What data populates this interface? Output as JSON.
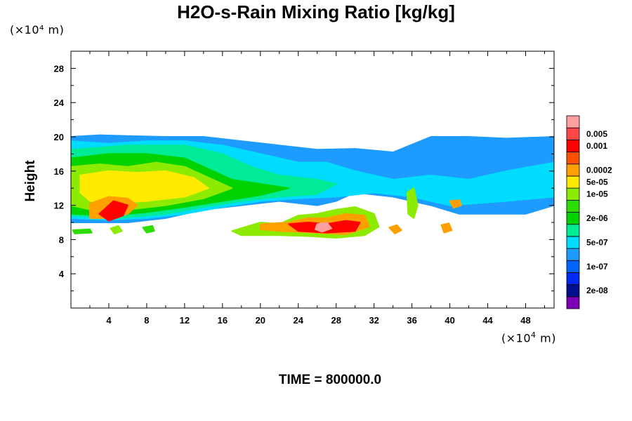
{
  "chart_data": {
    "type": "heatmap",
    "title": "H2O-s-Rain Mixing Ratio [kg/kg]",
    "xlabel": "",
    "ylabel": "Height",
    "x_unit": "(×10⁴ m)",
    "y_unit": "(×10⁴ m)",
    "x_unit_base": "(×10",
    "x_unit_exp": "4",
    "x_unit_tail": " m)",
    "xlim": [
      0,
      51
    ],
    "ylim": [
      0,
      30
    ],
    "x_ticks": [
      4,
      8,
      12,
      16,
      20,
      24,
      28,
      32,
      36,
      40,
      44,
      48
    ],
    "y_ticks": [
      4,
      8,
      12,
      16,
      20,
      24,
      28
    ],
    "footer": "TIME = 800000.0",
    "colorbar": {
      "colors": [
        "#7b00b4",
        "#000f8c",
        "#0028f0",
        "#0064ff",
        "#1e9bff",
        "#00dcff",
        "#00eb96",
        "#00d200",
        "#2ddc00",
        "#8ceb00",
        "#ffeb00",
        "#ffa000",
        "#ff5000",
        "#ff0000",
        "#ff4646",
        "#ffa0a0"
      ],
      "labels": [
        {
          "index": 1,
          "text": "2e-08"
        },
        {
          "index": 3,
          "text": "1e-07"
        },
        {
          "index": 5,
          "text": "5e-07"
        },
        {
          "index": 7,
          "text": "2e-06"
        },
        {
          "index": 9,
          "text": "1e-05"
        },
        {
          "index": 10,
          "text": "5e-05"
        },
        {
          "index": 11,
          "text": "0.0002"
        },
        {
          "index": 13,
          "text": "0.001"
        },
        {
          "index": 14,
          "text": "0.005"
        }
      ]
    },
    "regions": [
      {
        "name": "upper-cloud-band",
        "level": 4,
        "points": [
          [
            0,
            20
          ],
          [
            3,
            20.2
          ],
          [
            6,
            20.1
          ],
          [
            10,
            20
          ],
          [
            14,
            20
          ],
          [
            18,
            19.5
          ],
          [
            22,
            19
          ],
          [
            26,
            18.5
          ],
          [
            30,
            18.6
          ],
          [
            34,
            18.2
          ],
          [
            38,
            20
          ],
          [
            42,
            20
          ],
          [
            46,
            19.8
          ],
          [
            51,
            20
          ],
          [
            51,
            12
          ],
          [
            48,
            11
          ],
          [
            45,
            11
          ],
          [
            41,
            11
          ],
          [
            38,
            12
          ],
          [
            34,
            13
          ],
          [
            30,
            13.5
          ],
          [
            28,
            12.5
          ],
          [
            26,
            12
          ],
          [
            22,
            12.5
          ],
          [
            18,
            12
          ],
          [
            14,
            11.5
          ],
          [
            10,
            10.5
          ],
          [
            6,
            10
          ],
          [
            3,
            10
          ],
          [
            0,
            10
          ]
        ]
      },
      {
        "name": "mid-cloud",
        "level": 5,
        "points": [
          [
            0,
            19.5
          ],
          [
            4,
            19.2
          ],
          [
            8,
            19.5
          ],
          [
            12,
            19.5
          ],
          [
            16,
            19
          ],
          [
            20,
            18
          ],
          [
            24,
            17
          ],
          [
            27,
            17
          ],
          [
            30,
            16
          ],
          [
            34,
            15
          ],
          [
            38,
            15.5
          ],
          [
            42,
            15
          ],
          [
            46,
            16
          ],
          [
            51,
            17
          ],
          [
            51,
            13
          ],
          [
            46,
            12.5
          ],
          [
            40,
            12
          ],
          [
            36,
            13
          ],
          [
            32,
            13.5
          ],
          [
            28,
            13
          ],
          [
            24,
            12.8
          ],
          [
            20,
            12.5
          ],
          [
            16,
            11.8
          ],
          [
            12,
            11
          ],
          [
            8,
            10.5
          ],
          [
            4,
            10.3
          ],
          [
            0,
            10.5
          ]
        ]
      },
      {
        "name": "teal-layer",
        "level": 6,
        "points": [
          [
            0,
            18.5
          ],
          [
            6,
            19
          ],
          [
            12,
            19
          ],
          [
            16,
            18
          ],
          [
            19,
            16.5
          ],
          [
            22,
            15.5
          ],
          [
            26,
            15
          ],
          [
            28,
            14.5
          ],
          [
            26,
            13.3
          ],
          [
            22,
            13
          ],
          [
            18,
            12.5
          ],
          [
            14,
            11.8
          ],
          [
            10,
            11
          ],
          [
            5,
            10.5
          ],
          [
            0,
            10.8
          ]
        ]
      },
      {
        "name": "green-layer",
        "level": 7,
        "points": [
          [
            0,
            17.5
          ],
          [
            4,
            18
          ],
          [
            8,
            18
          ],
          [
            12,
            17.5
          ],
          [
            15,
            16
          ],
          [
            17,
            15
          ],
          [
            20,
            14.5
          ],
          [
            23,
            14
          ],
          [
            20,
            13.2
          ],
          [
            16,
            12.5
          ],
          [
            12,
            11.8
          ],
          [
            8,
            11.2
          ],
          [
            4,
            10.8
          ],
          [
            0,
            11
          ]
        ]
      },
      {
        "name": "yellow-green-layer",
        "level": 9,
        "points": [
          [
            0,
            16.5
          ],
          [
            3,
            16.8
          ],
          [
            6,
            16.5
          ],
          [
            9,
            17
          ],
          [
            12,
            16.5
          ],
          [
            15,
            15
          ],
          [
            17,
            14
          ],
          [
            14,
            12.8
          ],
          [
            10,
            12
          ],
          [
            6,
            11.5
          ],
          [
            2,
            11.5
          ],
          [
            0,
            12
          ]
        ]
      },
      {
        "name": "yellow-core",
        "level": 10,
        "points": [
          [
            1,
            15.5
          ],
          [
            4,
            16
          ],
          [
            7,
            15.8
          ],
          [
            10,
            16
          ],
          [
            13,
            15.2
          ],
          [
            14.5,
            14
          ],
          [
            12,
            13
          ],
          [
            8,
            12.5
          ],
          [
            5,
            12.3
          ],
          [
            2,
            12.5
          ],
          [
            1,
            13.5
          ]
        ]
      },
      {
        "name": "orange-core-left",
        "level": 11,
        "points": [
          [
            2,
            12.2
          ],
          [
            4,
            13
          ],
          [
            6,
            12.8
          ],
          [
            7,
            12
          ],
          [
            6,
            11
          ],
          [
            4,
            10.5
          ],
          [
            2,
            10.5
          ]
        ]
      },
      {
        "name": "red-core-left",
        "level": 13,
        "points": [
          [
            3,
            11
          ],
          [
            4.5,
            12.5
          ],
          [
            6,
            12
          ],
          [
            5.5,
            10.8
          ],
          [
            4,
            10.2
          ]
        ]
      },
      {
        "name": "lower-cells",
        "level": 9,
        "points": [
          [
            17,
            9
          ],
          [
            20,
            10
          ],
          [
            22,
            9.8
          ],
          [
            24,
            10.8
          ],
          [
            26,
            11
          ],
          [
            28,
            11.5
          ],
          [
            30,
            11.8
          ],
          [
            32,
            11
          ],
          [
            32.5,
            9.5
          ],
          [
            31,
            8.5
          ],
          [
            28,
            8.2
          ],
          [
            25,
            8.4
          ],
          [
            22,
            8.5
          ],
          [
            20,
            8.5
          ],
          [
            18,
            8.5
          ]
        ]
      },
      {
        "name": "lower-cells-core",
        "level": 11,
        "points": [
          [
            20,
            9.8
          ],
          [
            23,
            10
          ],
          [
            25,
            10.5
          ],
          [
            27,
            10.5
          ],
          [
            29,
            11
          ],
          [
            31,
            10.8
          ],
          [
            31.5,
            9.5
          ],
          [
            29,
            8.6
          ],
          [
            26,
            8.8
          ],
          [
            22,
            9
          ],
          [
            20,
            9.2
          ]
        ]
      },
      {
        "name": "lower-cells-red",
        "level": 13,
        "points": [
          [
            23,
            9.8
          ],
          [
            25,
            10
          ],
          [
            27,
            9.8
          ],
          [
            29,
            10.2
          ],
          [
            30.5,
            10
          ],
          [
            30,
            9
          ],
          [
            27,
            8.8
          ],
          [
            24,
            9
          ]
        ]
      },
      {
        "name": "peak",
        "level": 15,
        "points": [
          [
            26,
            9.8
          ],
          [
            27,
            10
          ],
          [
            27.5,
            9.3
          ],
          [
            26.5,
            8.9
          ],
          [
            25.8,
            9.2
          ]
        ]
      },
      {
        "name": "small-cell-34",
        "level": 11,
        "points": [
          [
            33.6,
            9.4
          ],
          [
            34.4,
            9.7
          ],
          [
            34.9,
            9.1
          ],
          [
            34.2,
            8.7
          ]
        ]
      },
      {
        "name": "small-cell-39",
        "level": 11,
        "points": [
          [
            39.1,
            9.7
          ],
          [
            39.9,
            9.9
          ],
          [
            40.2,
            9.1
          ],
          [
            39.4,
            8.8
          ]
        ]
      },
      {
        "name": "small-cell-5",
        "level": 9,
        "points": [
          [
            4.2,
            9.3
          ],
          [
            5.0,
            9.6
          ],
          [
            5.4,
            9.0
          ],
          [
            4.6,
            8.7
          ]
        ]
      },
      {
        "name": "small-cell-8",
        "level": 8,
        "points": [
          [
            7.6,
            9.4
          ],
          [
            8.6,
            9.6
          ],
          [
            8.8,
            9.0
          ],
          [
            8.0,
            8.8
          ]
        ]
      },
      {
        "name": "small-cell-1",
        "level": 8,
        "points": [
          [
            0.2,
            9.1
          ],
          [
            2.0,
            9.2
          ],
          [
            2.2,
            8.8
          ],
          [
            0.4,
            8.7
          ]
        ]
      },
      {
        "name": "tower-36",
        "level": 9,
        "points": [
          [
            35.5,
            13.5
          ],
          [
            36.2,
            14
          ],
          [
            36.6,
            12
          ],
          [
            36.2,
            10.5
          ],
          [
            35.6,
            11
          ]
        ]
      },
      {
        "name": "cell-41",
        "level": 11,
        "points": [
          [
            40,
            12.5
          ],
          [
            41,
            12.6
          ],
          [
            41.2,
            12
          ],
          [
            40.4,
            11.7
          ]
        ]
      }
    ]
  }
}
